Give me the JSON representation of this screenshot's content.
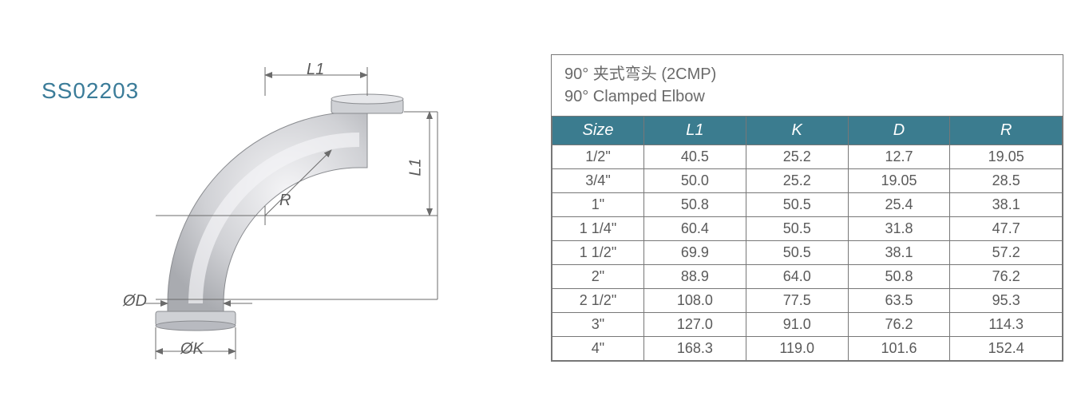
{
  "part_code": "SS02203",
  "title_cn": "90°  夹式弯头 (2CMP)",
  "title_en": "90°   Clamped Elbow",
  "diagram": {
    "labels": {
      "L1_top": "L1",
      "L1_right": "L1",
      "R": "R",
      "OD": "ØD",
      "OK": "ØK"
    },
    "colors": {
      "body_light": "#e8e8ea",
      "body_dark": "#b5b7bb",
      "line": "#6b6b6b",
      "highlight": "#f4f4f6"
    }
  },
  "table": {
    "header_bg": "#3b7c8f",
    "header_fg": "#ffffff",
    "border": "#777777",
    "cell_fg": "#5a5a5a",
    "columns": [
      "Size",
      "L1",
      "K",
      "D",
      "R"
    ],
    "rows": [
      [
        "1/2\"",
        "40.5",
        "25.2",
        "12.7",
        "19.05"
      ],
      [
        "3/4\"",
        "50.0",
        "25.2",
        "19.05",
        "28.5"
      ],
      [
        "1\"",
        "50.8",
        "50.5",
        "25.4",
        "38.1"
      ],
      [
        "1 1/4\"",
        "60.4",
        "50.5",
        "31.8",
        "47.7"
      ],
      [
        "1 1/2\"",
        "69.9",
        "50.5",
        "38.1",
        "57.2"
      ],
      [
        "2\"",
        "88.9",
        "64.0",
        "50.8",
        "76.2"
      ],
      [
        "2 1/2\"",
        "108.0",
        "77.5",
        "63.5",
        "95.3"
      ],
      [
        "3\"",
        "127.0",
        "91.0",
        "76.2",
        "114.3"
      ],
      [
        "4\"",
        "168.3",
        "119.0",
        "101.6",
        "152.4"
      ]
    ]
  }
}
